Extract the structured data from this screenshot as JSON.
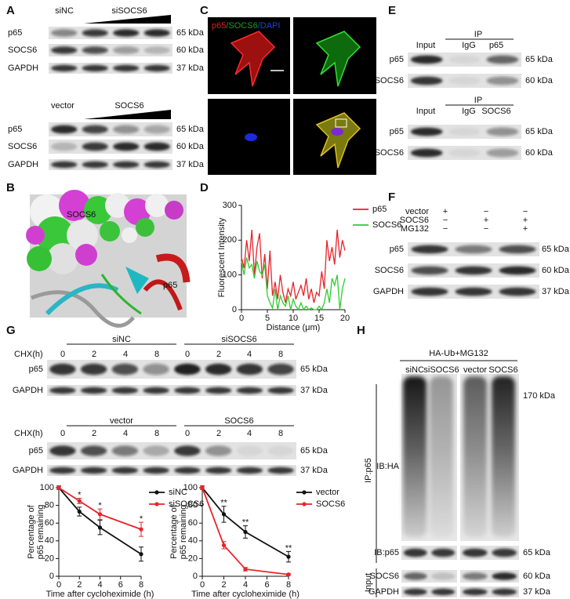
{
  "figure": {
    "panel_labels": [
      "A",
      "B",
      "C",
      "D",
      "E",
      "F",
      "G",
      "H"
    ],
    "A": {
      "groups": [
        {
          "lanes": [
            "siNC",
            "siSOCS6"
          ],
          "rows": [
            {
              "protein": "p65",
              "size": "65 kDa"
            },
            {
              "protein": "SOCS6",
              "size": "60 kDa"
            },
            {
              "protein": "GAPDH",
              "size": "37 kDa"
            }
          ]
        },
        {
          "lanes": [
            "vector",
            "SOCS6"
          ],
          "rows": [
            {
              "protein": "p65",
              "size": "65 kDa"
            },
            {
              "protein": "SOCS6",
              "size": "60 kDa"
            },
            {
              "protein": "GAPDH",
              "size": "37 kDa"
            }
          ]
        }
      ]
    },
    "B": {
      "labels": [
        "SOCS6",
        "p65"
      ]
    },
    "C": {
      "title_parts": [
        {
          "text": "p65",
          "color": "#e02020"
        },
        {
          "text": "/SOCS6",
          "color": "#1aa01a"
        },
        {
          "text": "/DAPI",
          "color": "#2040d0"
        }
      ]
    },
    "E": {
      "blocks": [
        {
          "ip": "IP",
          "lanes": [
            "Input",
            "IgG",
            "p65"
          ],
          "rows": [
            {
              "protein": "p65",
              "size": "65 kDa"
            },
            {
              "protein": "SOCS6",
              "size": "60 kDa"
            }
          ]
        },
        {
          "ip": "IP",
          "lanes": [
            "Input",
            "IgG",
            "SOCS6"
          ],
          "rows": [
            {
              "protein": "p65",
              "size": "65 kDa"
            },
            {
              "protein": "SOCS6",
              "size": "60 kDa"
            }
          ]
        }
      ]
    },
    "F": {
      "treatments": [
        {
          "name": "vector",
          "signs": [
            "+",
            "−",
            "−"
          ]
        },
        {
          "name": "SOCS6",
          "signs": [
            "−",
            "+",
            "+"
          ]
        },
        {
          "name": "MG132",
          "signs": [
            "−",
            "−",
            "+"
          ]
        }
      ],
      "rows": [
        {
          "protein": "p65",
          "size": "65 kDa"
        },
        {
          "protein": "SOCS6",
          "size": "60 kDa"
        },
        {
          "protein": "GAPDH",
          "size": "37 kDa"
        }
      ]
    },
    "G": {
      "blots": [
        {
          "groups": [
            "siNC",
            "siSOCS6"
          ],
          "chx_label": "CHX(h)",
          "times": [
            0,
            2,
            4,
            8,
            0,
            2,
            4,
            8
          ],
          "rows": [
            {
              "protein": "p65",
              "size": "65 kDa"
            },
            {
              "protein": "GAPDH",
              "size": "37 kDa"
            }
          ]
        },
        {
          "groups": [
            "vector",
            "SOCS6"
          ],
          "chx_label": "CHX(h)",
          "times": [
            0,
            2,
            4,
            8,
            0,
            2,
            4,
            8
          ],
          "rows": [
            {
              "protein": "p65",
              "size": "65 kDa"
            },
            {
              "protein": "GAPDH",
              "size": "37 kDa"
            }
          ]
        }
      ]
    },
    "H": {
      "treatment": "HA-Ub+MG132",
      "lanes": [
        "siNC",
        "siSOCS6",
        "vector",
        "SOCS6"
      ],
      "ip_label": "IP:p65",
      "input_label": "Input",
      "rows": [
        {
          "protein": "IB:HA",
          "size": "170 kDa"
        },
        {
          "protein": "IB:p65",
          "size": "65 kDa"
        },
        {
          "protein": "SOCS6",
          "size": "60 kDa"
        },
        {
          "protein": "GAPDH",
          "size": "37 kDa"
        }
      ]
    }
  },
  "chart_data": [
    {
      "type": "line",
      "xlabel": "Distance (μm)",
      "ylabel": "Fluorescent Intensity",
      "x": [
        0,
        0.5,
        1,
        1.5,
        2,
        2.5,
        3,
        3.5,
        4,
        4.5,
        5,
        5.5,
        6,
        6.5,
        7,
        7.5,
        8,
        8.5,
        9,
        9.5,
        10,
        10.5,
        11,
        11.5,
        12,
        12.5,
        13,
        13.5,
        14,
        14.5,
        15,
        15.5,
        16,
        16.5,
        17,
        17.5,
        18,
        18.5,
        19,
        19.5,
        20
      ],
      "series": [
        {
          "name": "p65",
          "color": "#e8232a",
          "values": [
            150,
            120,
            200,
            140,
            230,
            100,
            180,
            220,
            90,
            160,
            60,
            170,
            40,
            80,
            30,
            100,
            50,
            20,
            60,
            40,
            80,
            30,
            50,
            70,
            40,
            90,
            30,
            60,
            20,
            50,
            40,
            110,
            60,
            200,
            140,
            180,
            130,
            230,
            150,
            200,
            170
          ]
        },
        {
          "name": "SOCS6",
          "color": "#2fcc2f",
          "values": [
            140,
            100,
            150,
            120,
            130,
            90,
            140,
            110,
            100,
            130,
            40,
            20,
            5,
            60,
            0,
            40,
            20,
            10,
            40,
            0,
            30,
            10,
            0,
            20,
            0,
            10,
            0,
            5,
            0,
            0,
            10,
            0,
            20,
            60,
            20,
            90,
            70,
            100,
            0,
            60,
            90
          ]
        }
      ],
      "xlim": [
        0,
        20
      ],
      "ylim": [
        0,
        300
      ],
      "xticks": [
        0,
        5,
        10,
        15,
        20
      ],
      "yticks": [
        0,
        100,
        200,
        300
      ],
      "legend": "right",
      "markers": false
    },
    {
      "type": "line",
      "xlabel": "Time after cycloheximide (h)",
      "ylabel": [
        "Percentage of",
        "p65 remaining"
      ],
      "x": [
        0,
        2,
        4,
        8
      ],
      "series": [
        {
          "name": "siNC",
          "color": "#111111",
          "values": [
            100,
            73,
            55,
            25
          ],
          "errors": [
            2,
            5,
            8,
            8
          ]
        },
        {
          "name": "siSOCS6",
          "color": "#e8232a",
          "values": [
            100,
            85,
            70,
            53
          ],
          "errors": [
            2,
            3,
            6,
            8
          ]
        }
      ],
      "significance": [
        null,
        "*",
        "*",
        "*"
      ],
      "xlim": [
        0,
        8
      ],
      "ylim": [
        0,
        100
      ],
      "xticks": [
        0,
        2,
        4,
        6,
        8
      ],
      "yticks": [
        0,
        20,
        40,
        60,
        80,
        100
      ],
      "legend": "right",
      "markers": true
    },
    {
      "type": "line",
      "xlabel": "Time after cycloheximide (h)",
      "ylabel": [
        "Percentage of",
        "p65 remaining"
      ],
      "x": [
        0,
        2,
        4,
        8
      ],
      "series": [
        {
          "name": "vector",
          "color": "#111111",
          "values": [
            100,
            70,
            50,
            22
          ],
          "errors": [
            2,
            9,
            7,
            6
          ]
        },
        {
          "name": "SOCS6",
          "color": "#e8232a",
          "values": [
            100,
            35,
            8,
            2
          ],
          "errors": [
            2,
            4,
            2,
            1
          ]
        }
      ],
      "significance": [
        null,
        "**",
        "**",
        "**"
      ],
      "xlim": [
        0,
        8
      ],
      "ylim": [
        0,
        100
      ],
      "xticks": [
        0,
        2,
        4,
        6,
        8
      ],
      "yticks": [
        0,
        20,
        40,
        60,
        80,
        100
      ],
      "legend": "right",
      "markers": true
    }
  ]
}
